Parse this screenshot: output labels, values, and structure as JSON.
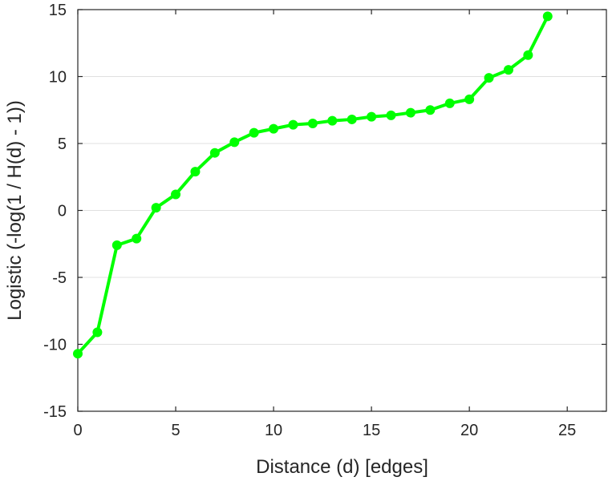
{
  "chart_data": {
    "type": "line",
    "title": "",
    "xlabel": "Distance (d) [edges]",
    "ylabel": "Logistic (-log(1 / H(d) - 1))",
    "xlim": [
      0,
      27
    ],
    "ylim": [
      -15,
      15
    ],
    "xticks": [
      0,
      5,
      10,
      15,
      20,
      25
    ],
    "yticks": [
      -15,
      -10,
      -5,
      0,
      5,
      10,
      15
    ],
    "xtick_labels": [
      "0",
      "5",
      "10",
      "15",
      "20",
      "25"
    ],
    "ytick_labels": [
      "-15",
      "-10",
      "-5",
      "0",
      "5",
      "10",
      "15"
    ],
    "grid": "horizontal",
    "legend": "none",
    "series": [
      {
        "color": "#00ff00",
        "marker": "circle",
        "x": [
          0,
          1,
          2,
          3,
          4,
          5,
          6,
          7,
          8,
          9,
          10,
          11,
          12,
          13,
          14,
          15,
          16,
          17,
          18,
          19,
          20,
          21,
          22,
          23,
          24
        ],
        "y": [
          -10.7,
          -9.1,
          -2.6,
          -2.1,
          0.2,
          1.2,
          2.9,
          4.3,
          5.1,
          5.8,
          6.1,
          6.4,
          6.5,
          6.7,
          6.8,
          7.0,
          7.1,
          7.3,
          7.5,
          8.0,
          8.3,
          9.9,
          10.5,
          11.6,
          14.5
        ]
      }
    ]
  }
}
